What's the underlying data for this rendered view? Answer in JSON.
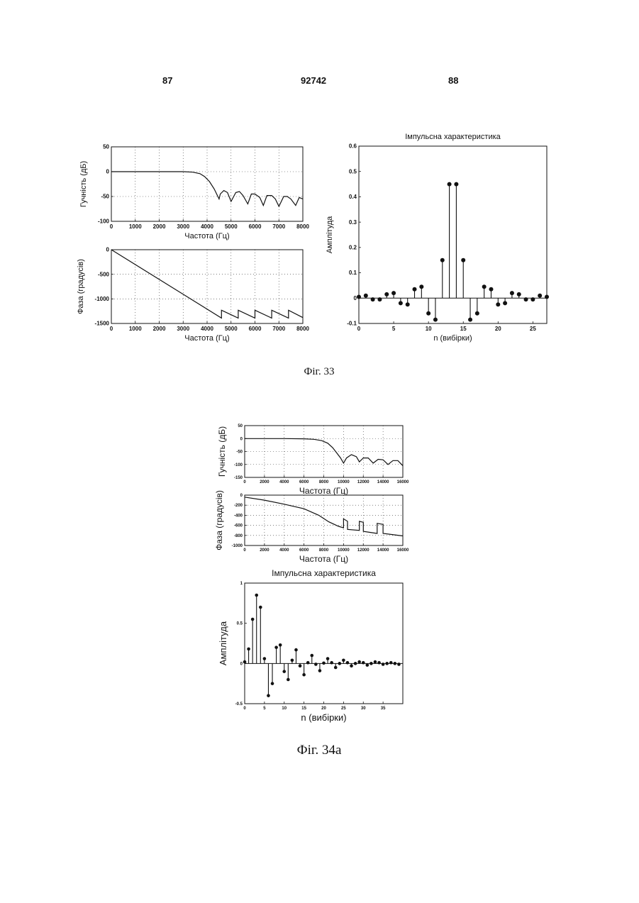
{
  "page": {
    "left_number": "87",
    "patent_number": "92742",
    "right_number": "88"
  },
  "figures": {
    "fig33_caption": "Фіг. 33",
    "fig34a_caption": "Фіг. 34а"
  },
  "chart_data": [
    {
      "id": "fig33-magnitude",
      "type": "line",
      "xlabel": "Частота (Гц)",
      "ylabel": "Гучність (дБ)",
      "xlim": [
        0,
        8000
      ],
      "ylim": [
        -100,
        50
      ],
      "xticks": [
        0,
        1000,
        2000,
        3000,
        4000,
        5000,
        6000,
        7000,
        8000
      ],
      "yticks": [
        50,
        0,
        -50,
        -100
      ],
      "grid": true,
      "x": [
        0,
        500,
        1000,
        1500,
        2000,
        2500,
        3000,
        3400,
        3700,
        3900,
        4100,
        4300,
        4500,
        4550,
        4700,
        4850,
        5000,
        5200,
        5350,
        5500,
        5700,
        5850,
        6000,
        6200,
        6350,
        6500,
        6700,
        6850,
        7000,
        7200,
        7350,
        7500,
        7700,
        7850,
        8000
      ],
      "y": [
        0,
        0,
        0,
        0,
        0,
        0,
        0,
        -1,
        -4,
        -10,
        -20,
        -35,
        -55,
        -45,
        -38,
        -42,
        -60,
        -42,
        -40,
        -48,
        -65,
        -45,
        -45,
        -52,
        -68,
        -48,
        -48,
        -55,
        -70,
        -50,
        -50,
        -55,
        -68,
        -52,
        -55
      ]
    },
    {
      "id": "fig33-phase",
      "type": "line",
      "xlabel": "Частота (Гц)",
      "ylabel": "Фаза (градусів)",
      "xlim": [
        0,
        8000
      ],
      "ylim": [
        -1500,
        0
      ],
      "xticks": [
        0,
        1000,
        2000,
        3000,
        4000,
        5000,
        6000,
        7000,
        8000
      ],
      "yticks": [
        0,
        -500,
        -1000,
        -1500
      ],
      "grid": true,
      "x": [
        0,
        4600,
        4600,
        5300,
        5300,
        6000,
        6000,
        6700,
        6700,
        7400,
        7400,
        8000
      ],
      "y": [
        0,
        -1390,
        -1230,
        -1390,
        -1230,
        -1390,
        -1230,
        -1390,
        -1230,
        -1390,
        -1230,
        -1380
      ]
    },
    {
      "id": "fig33-impulse",
      "type": "scatter",
      "title": "Імпульсна характеристика",
      "xlabel": "n (вибірки)",
      "ylabel": "Амплітуда",
      "xlim": [
        0,
        27
      ],
      "ylim": [
        -0.1,
        0.6
      ],
      "xticks": [
        0,
        5,
        10,
        15,
        20,
        25
      ],
      "yticks": [
        0.6,
        0.5,
        0.4,
        0.3,
        0.2,
        0.1,
        0,
        -0.1
      ],
      "grid": false,
      "x": [
        0,
        1,
        2,
        3,
        4,
        5,
        6,
        7,
        8,
        9,
        10,
        11,
        12,
        13,
        14,
        15,
        16,
        17,
        18,
        19,
        20,
        21,
        22,
        23,
        24,
        25,
        26,
        27
      ],
      "y": [
        0.005,
        0.01,
        -0.005,
        -0.005,
        0.015,
        0.02,
        -0.02,
        -0.025,
        0.035,
        0.045,
        -0.06,
        -0.085,
        0.15,
        0.45,
        0.45,
        0.15,
        -0.085,
        -0.06,
        0.045,
        0.035,
        -0.025,
        -0.02,
        0.02,
        0.015,
        -0.005,
        -0.005,
        0.01,
        0.005
      ]
    },
    {
      "id": "fig34a-magnitude",
      "type": "line",
      "xlabel": "Частота (Гц)",
      "ylabel": "Гучність (дБ)",
      "xlim": [
        0,
        16000
      ],
      "ylim": [
        -150,
        50
      ],
      "xticks": [
        0,
        2000,
        4000,
        6000,
        8000,
        10000,
        12000,
        14000,
        16000
      ],
      "yticks": [
        50,
        0,
        -50,
        -100,
        -150
      ],
      "grid": true,
      "x": [
        0,
        2000,
        4000,
        6000,
        7000,
        7800,
        8400,
        8900,
        9300,
        9700,
        10000,
        10300,
        10800,
        11300,
        11600,
        12000,
        12500,
        13000,
        13500,
        14000,
        14500,
        15000,
        15500,
        16000
      ],
      "y": [
        0,
        0,
        0,
        -1,
        -3,
        -8,
        -18,
        -35,
        -55,
        -75,
        -95,
        -75,
        -62,
        -70,
        -90,
        -75,
        -75,
        -95,
        -80,
        -82,
        -100,
        -85,
        -85,
        -105
      ]
    },
    {
      "id": "fig34a-phase",
      "type": "line",
      "xlabel": "Частота (Гц)",
      "ylabel": "Фаза (градусів)",
      "xlim": [
        0,
        16000
      ],
      "ylim": [
        -1000,
        0
      ],
      "xticks": [
        0,
        2000,
        4000,
        6000,
        8000,
        10000,
        12000,
        14000,
        16000
      ],
      "yticks": [
        0,
        -200,
        -400,
        -600,
        -800,
        -1000
      ],
      "grid": true,
      "x": [
        0,
        2000,
        4000,
        6000,
        7500,
        8500,
        9500,
        10000,
        10000,
        10400,
        10400,
        11600,
        11600,
        12000,
        12000,
        13400,
        13400,
        14000,
        14000,
        16000
      ],
      "y": [
        -40,
        -100,
        -180,
        -270,
        -400,
        -530,
        -620,
        -650,
        -470,
        -520,
        -680,
        -700,
        -520,
        -540,
        -720,
        -760,
        -560,
        -580,
        -760,
        -810
      ]
    },
    {
      "id": "fig34a-impulse",
      "type": "scatter",
      "title": "Імпульсна характеристика",
      "xlabel": "n (вибірки)",
      "ylabel": "Амплітуда",
      "xlim": [
        0,
        40
      ],
      "ylim": [
        -0.5,
        1
      ],
      "xticks": [
        0,
        5,
        10,
        15,
        20,
        25,
        30,
        35
      ],
      "yticks": [
        1,
        0.5,
        0,
        -0.5
      ],
      "grid": false,
      "x": [
        0,
        1,
        2,
        3,
        4,
        5,
        6,
        7,
        8,
        9,
        10,
        11,
        12,
        13,
        14,
        15,
        16,
        17,
        18,
        19,
        20,
        21,
        22,
        23,
        24,
        25,
        26,
        27,
        28,
        29,
        30,
        31,
        32,
        33,
        34,
        35,
        36,
        37,
        38,
        39
      ],
      "y": [
        0.02,
        0.18,
        0.55,
        0.85,
        0.7,
        0.06,
        -0.4,
        -0.25,
        0.2,
        0.23,
        -0.1,
        -0.2,
        0.04,
        0.17,
        -0.03,
        -0.14,
        0.01,
        0.1,
        -0.01,
        -0.09,
        0.005,
        0.06,
        0.01,
        -0.05,
        0.0,
        0.04,
        0.01,
        -0.03,
        0.0,
        0.02,
        0.01,
        -0.02,
        0.0,
        0.02,
        0.01,
        -0.01,
        0.0,
        0.01,
        0.0,
        -0.01
      ]
    }
  ]
}
